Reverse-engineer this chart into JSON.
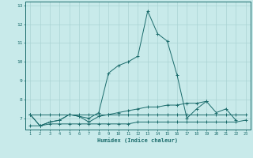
{
  "xlabel": "Humidex (Indice chaleur)",
  "x_values": [
    1,
    2,
    3,
    4,
    5,
    6,
    7,
    8,
    9,
    10,
    11,
    12,
    13,
    14,
    15,
    16,
    17,
    18,
    19,
    20,
    21,
    22,
    23
  ],
  "line1": [
    7.2,
    6.6,
    6.8,
    6.9,
    7.2,
    7.1,
    7.0,
    7.3,
    9.4,
    9.8,
    10.0,
    10.3,
    12.7,
    11.5,
    11.1,
    9.3,
    7.0,
    7.5,
    7.9,
    7.3,
    7.5,
    6.9,
    null
  ],
  "line2": [
    7.2,
    6.6,
    6.8,
    6.9,
    7.2,
    7.1,
    6.8,
    7.1,
    7.2,
    7.3,
    7.4,
    7.5,
    7.6,
    7.6,
    7.7,
    7.7,
    7.8,
    7.8,
    7.9,
    null,
    null,
    null,
    null
  ],
  "line3": [
    6.6,
    6.6,
    6.7,
    6.7,
    6.7,
    6.7,
    6.7,
    6.7,
    6.7,
    6.7,
    6.7,
    6.8,
    6.8,
    6.8,
    6.8,
    6.8,
    6.8,
    6.8,
    6.8,
    6.8,
    6.8,
    6.8,
    6.9
  ],
  "line4": [
    7.2,
    7.2,
    7.2,
    7.2,
    7.2,
    7.2,
    7.2,
    7.2,
    7.2,
    7.2,
    7.2,
    7.2,
    7.2,
    7.2,
    7.2,
    7.2,
    7.2,
    7.2,
    7.2,
    7.2,
    7.2,
    7.2,
    7.2
  ],
  "line_color": "#1a6b6b",
  "bg_color": "#c8eaea",
  "grid_color": "#aad4d4",
  "ylim": [
    6.4,
    13.2
  ],
  "yticks": [
    7,
    8,
    9,
    10,
    11,
    12,
    13
  ],
  "xlim": [
    0.5,
    23.5
  ],
  "xticks": [
    1,
    2,
    3,
    4,
    5,
    6,
    7,
    8,
    9,
    10,
    11,
    12,
    13,
    14,
    15,
    16,
    17,
    18,
    19,
    20,
    21,
    22,
    23
  ]
}
